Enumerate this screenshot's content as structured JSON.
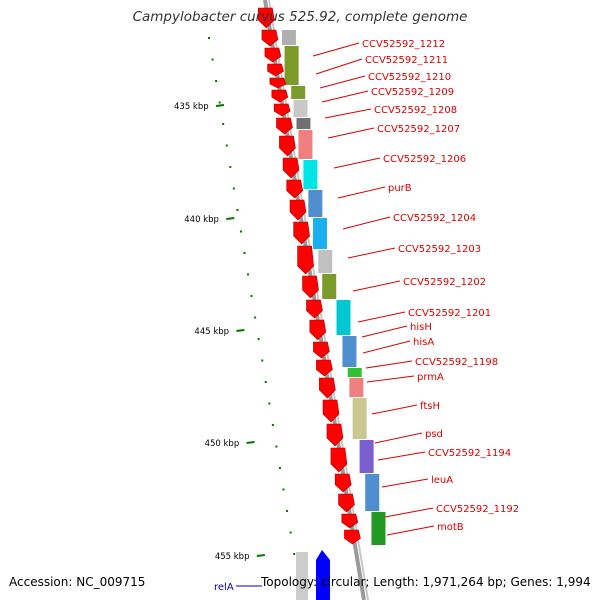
{
  "header": {
    "title": "Campylobacter curvus 525.92, complete genome"
  },
  "footer": {
    "accession": "Accession: NC_009715",
    "summary": "Topology: circular; Length: 1,971,264 bp; Genes: 1,994"
  },
  "colors": {
    "forward_gene": "#ff0000",
    "reverse_gene": "#0000ff",
    "label": "#dd0000",
    "tick": "#007700",
    "backbone": "#888888"
  },
  "scale_labels": [
    "435 kbp",
    "440 kbp",
    "445 kbp",
    "450 kbp",
    "455 kbp"
  ],
  "gene_labels": [
    {
      "text": "CCV52592_1212"
    },
    {
      "text": "CCV52592_1211"
    },
    {
      "text": "CCV52592_1210"
    },
    {
      "text": "CCV52592_1209"
    },
    {
      "text": "CCV52592_1208"
    },
    {
      "text": "CCV52592_1207"
    },
    {
      "text": "CCV52592_1206"
    },
    {
      "text": "purB"
    },
    {
      "text": "CCV52592_1204"
    },
    {
      "text": "CCV52592_1203"
    },
    {
      "text": "CCV52592_1202"
    },
    {
      "text": "CCV52592_1201"
    },
    {
      "text": "hisH"
    },
    {
      "text": "hisA"
    },
    {
      "text": "CCV52592_1198"
    },
    {
      "text": "prmA"
    },
    {
      "text": "ftsH"
    },
    {
      "text": "psd"
    },
    {
      "text": "CCV52592_1194"
    },
    {
      "text": "leuA"
    },
    {
      "text": "CCV52592_1192"
    },
    {
      "text": "motB"
    },
    {
      "text": "relA"
    }
  ],
  "cog_colors": [
    "#b0b0b0",
    "#7a9a2a",
    "#7a9a2a",
    "#c8c8c8",
    "#707070",
    "#f08080",
    "#00e5e5",
    "#4f8fd0",
    "#1ab0f0",
    "#c0c0c0",
    "#7a9a2a",
    "#00c8d0",
    "#4f8fd0",
    "#30c030",
    "#f08080",
    "#c8c890",
    "#7a5fd0",
    "#4f8fd0",
    "#229922"
  ]
}
